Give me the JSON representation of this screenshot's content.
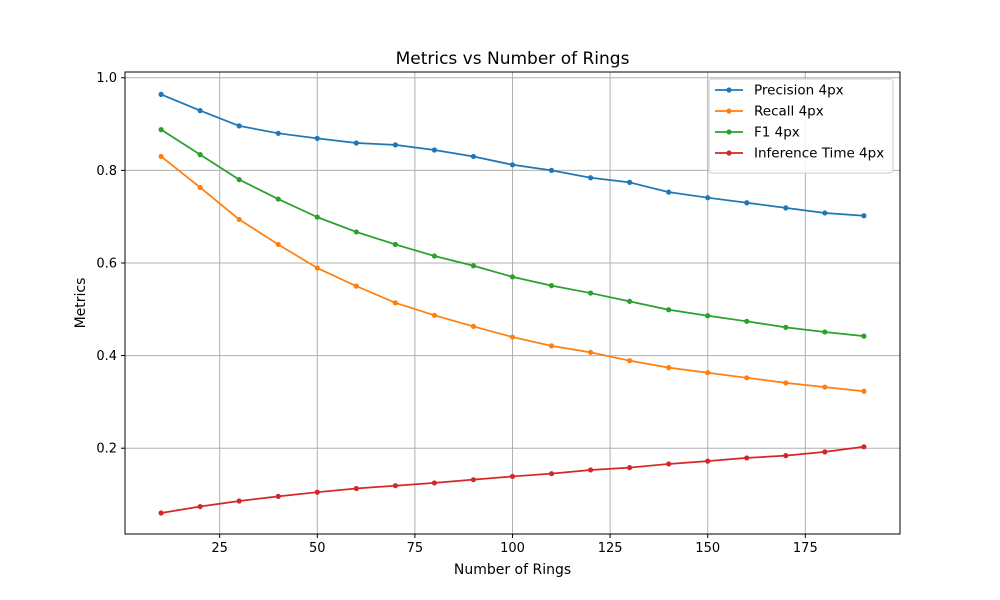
{
  "chart_data": {
    "type": "line",
    "title": "Metrics vs Number of Rings",
    "xlabel": "Number of Rings",
    "ylabel": "Metrics",
    "x": [
      10,
      20,
      30,
      40,
      50,
      60,
      70,
      80,
      90,
      100,
      110,
      120,
      130,
      140,
      150,
      160,
      170,
      180,
      190
    ],
    "xlim": [
      0.75,
      199.25
    ],
    "ylim": [
      0.0147,
      1.0124
    ],
    "xticks": [
      25,
      50,
      75,
      100,
      125,
      150,
      175
    ],
    "yticks": [
      0.2,
      0.4,
      0.6,
      0.8,
      1.0
    ],
    "xtick_labels": [
      "25",
      "50",
      "75",
      "100",
      "125",
      "150",
      "175"
    ],
    "ytick_labels": [
      "0.2",
      "0.4",
      "0.6",
      "0.8",
      "1.0"
    ],
    "grid": true,
    "legend_position": "top-right",
    "series": [
      {
        "name": "Precision 4px",
        "color": "#1f77b4",
        "values": [
          0.964,
          0.929,
          0.896,
          0.88,
          0.869,
          0.859,
          0.855,
          0.844,
          0.83,
          0.812,
          0.8,
          0.784,
          0.774,
          0.753,
          0.741,
          0.73,
          0.719,
          0.708,
          0.702
        ]
      },
      {
        "name": "Recall 4px",
        "color": "#ff7f0e",
        "values": [
          0.83,
          0.763,
          0.694,
          0.64,
          0.589,
          0.55,
          0.514,
          0.487,
          0.463,
          0.44,
          0.421,
          0.407,
          0.389,
          0.374,
          0.363,
          0.352,
          0.341,
          0.332,
          0.323
        ]
      },
      {
        "name": "F1 4px",
        "color": "#2ca02c",
        "values": [
          0.888,
          0.834,
          0.78,
          0.738,
          0.699,
          0.667,
          0.64,
          0.615,
          0.594,
          0.57,
          0.551,
          0.535,
          0.517,
          0.499,
          0.486,
          0.474,
          0.461,
          0.451,
          0.442
        ]
      },
      {
        "name": "Inference Time 4px",
        "color": "#d62728",
        "values": [
          0.06,
          0.074,
          0.086,
          0.096,
          0.105,
          0.113,
          0.119,
          0.125,
          0.132,
          0.139,
          0.145,
          0.153,
          0.158,
          0.166,
          0.172,
          0.179,
          0.184,
          0.192,
          0.203
        ]
      }
    ]
  }
}
